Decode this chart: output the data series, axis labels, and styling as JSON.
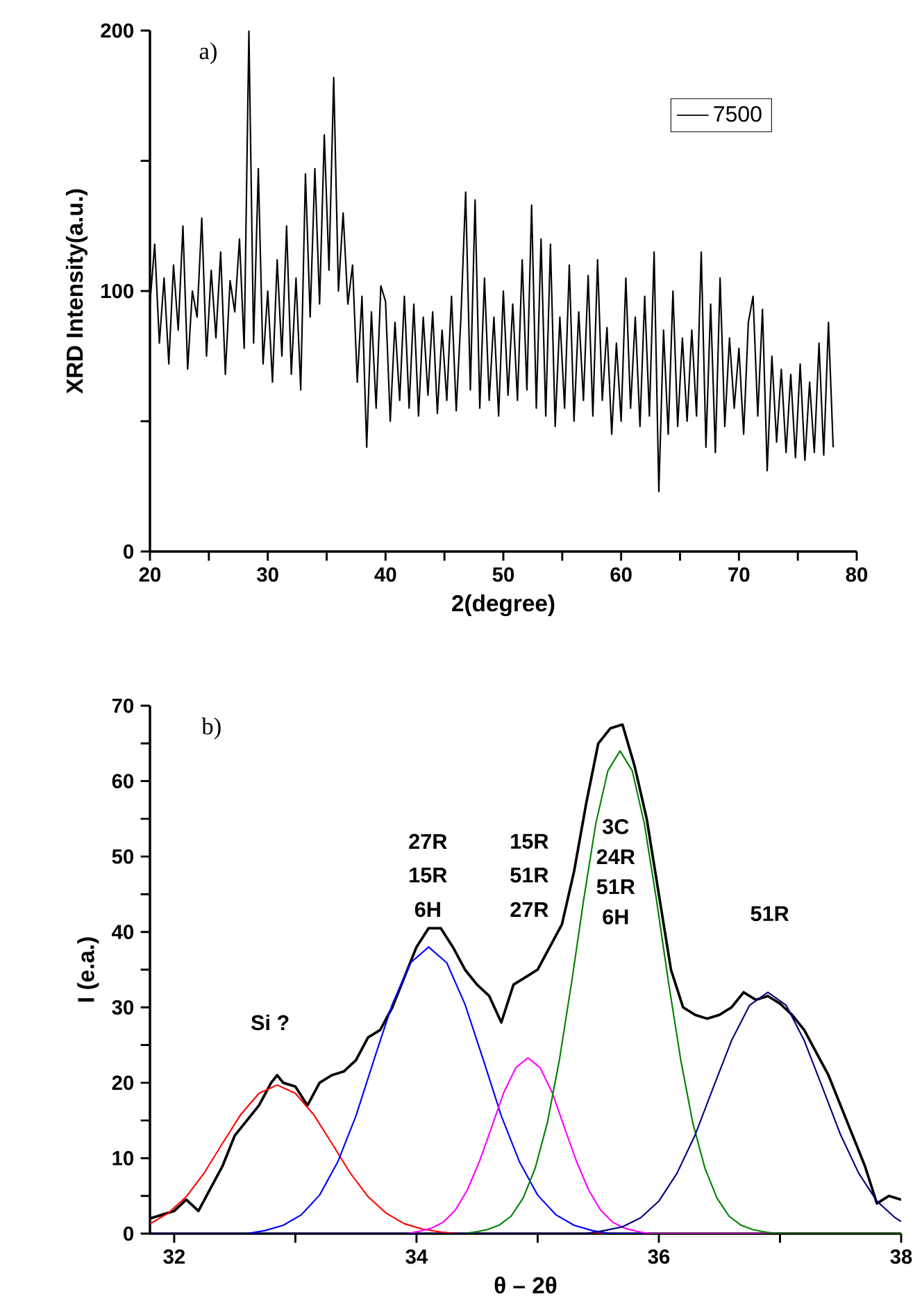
{
  "chart_data": [
    {
      "type": "line",
      "xlabel": "2(degree)",
      "ylabel": "XRD Intensity(a.u.)",
      "legend": "top right",
      "grid": false,
      "marker": "none",
      "line_style": "solid",
      "annotations": [
        "a)"
      ],
      "xlim": [
        20,
        80
      ],
      "ylim": [
        0,
        200
      ],
      "xticks": [
        20,
        {
          "value": 25,
          "label": null
        },
        30,
        {
          "value": 35,
          "label": null
        },
        40,
        {
          "value": 45,
          "label": null
        },
        50,
        {
          "value": 55,
          "label": null
        },
        60,
        {
          "value": 65,
          "label": null
        },
        70,
        {
          "value": 75,
          "label": null
        },
        80
      ],
      "yticks": [
        0,
        {
          "value": 50,
          "label": null
        },
        100,
        {
          "value": 150,
          "label": null
        },
        200
      ],
      "series": [
        {
          "name": "7500",
          "color": "#000000",
          "x": [
            20.0,
            20.4,
            20.8,
            21.2,
            21.6,
            22.0,
            22.4,
            22.8,
            23.2,
            23.6,
            24.0,
            24.4,
            24.8,
            25.2,
            25.6,
            26.0,
            26.4,
            26.8,
            27.2,
            27.6,
            28.0,
            28.4,
            28.8,
            29.2,
            29.6,
            30.0,
            30.4,
            30.8,
            31.2,
            31.6,
            32.0,
            32.4,
            32.8,
            33.2,
            33.6,
            34.0,
            34.4,
            34.8,
            35.2,
            35.6,
            36.0,
            36.4,
            36.8,
            37.2,
            37.6,
            38.0,
            38.4,
            38.8,
            39.2,
            39.6,
            40.0,
            40.4,
            40.8,
            41.2,
            41.6,
            42.0,
            42.4,
            42.8,
            43.2,
            43.6,
            44.0,
            44.4,
            44.8,
            45.2,
            45.6,
            46.0,
            46.4,
            46.8,
            47.2,
            47.6,
            48.0,
            48.4,
            48.8,
            49.2,
            49.6,
            50.0,
            50.4,
            50.8,
            51.2,
            51.6,
            52.0,
            52.4,
            52.8,
            53.2,
            53.6,
            54.0,
            54.4,
            54.8,
            55.2,
            55.6,
            56.0,
            56.4,
            56.8,
            57.2,
            57.6,
            58.0,
            58.4,
            58.8,
            59.2,
            59.6,
            60.0,
            60.4,
            60.8,
            61.2,
            61.6,
            62.0,
            62.4,
            62.8,
            63.2,
            63.6,
            64.0,
            64.4,
            64.8,
            65.2,
            65.6,
            66.0,
            66.4,
            66.8,
            67.2,
            67.6,
            68.0,
            68.4,
            68.8,
            69.2,
            69.6,
            70.0,
            70.4,
            70.8,
            71.2,
            71.6,
            72.0,
            72.4,
            72.8,
            73.2,
            73.6,
            74.0,
            74.4,
            74.8,
            75.2,
            75.6,
            76.0,
            76.4,
            76.8,
            77.2,
            77.6,
            78.0
          ],
          "values": [
            95,
            118,
            80,
            105,
            72,
            110,
            85,
            125,
            70,
            100,
            90,
            128,
            75,
            108,
            82,
            115,
            68,
            104,
            92,
            120,
            78,
            200,
            80,
            147,
            72,
            100,
            65,
            112,
            75,
            125,
            68,
            105,
            62,
            145,
            90,
            147,
            95,
            160,
            108,
            182,
            100,
            130,
            95,
            110,
            65,
            98,
            40,
            92,
            55,
            102,
            96,
            50,
            88,
            58,
            98,
            55,
            95,
            52,
            90,
            60,
            92,
            53,
            85,
            58,
            98,
            54,
            90,
            138,
            62,
            135,
            55,
            105,
            58,
            90,
            52,
            100,
            60,
            95,
            58,
            112,
            62,
            133,
            55,
            120,
            52,
            118,
            48,
            90,
            55,
            110,
            50,
            92,
            58,
            106,
            52,
            112,
            58,
            86,
            45,
            80,
            50,
            105,
            55,
            90,
            48,
            98,
            52,
            115,
            23,
            85,
            45,
            100,
            48,
            82,
            50,
            85,
            52,
            115,
            40,
            95,
            38,
            105,
            48,
            82,
            55,
            78,
            45,
            88,
            98,
            52,
            93,
            31,
            75,
            42,
            70,
            38,
            68,
            36,
            72,
            35,
            65,
            38,
            80,
            37,
            88,
            40
          ]
        }
      ]
    },
    {
      "type": "line",
      "xlabel": "θ – 2θ",
      "ylabel": "I (e.a.)",
      "grid": false,
      "marker": "none",
      "line_style": "solid",
      "annotations": [
        "b)",
        "Si ?",
        "27R",
        "15R",
        "6H",
        "15R",
        "51R",
        "27R",
        "3C",
        "24R",
        "51R",
        "6H",
        "51R"
      ],
      "xlim": [
        31.8,
        38
      ],
      "ylim": [
        0,
        70
      ],
      "xticks": [
        32,
        {
          "value": 33,
          "label": null
        },
        34,
        {
          "value": 35,
          "label": null
        },
        36,
        {
          "value": 37,
          "label": null
        },
        38
      ],
      "yticks": [
        0,
        {
          "value": 5,
          "label": null
        },
        10,
        {
          "value": 15,
          "label": null
        },
        20,
        {
          "value": 25,
          "label": null
        },
        30,
        {
          "value": 35,
          "label": null
        },
        40,
        {
          "value": 45,
          "label": null
        },
        50,
        {
          "value": 55,
          "label": null
        },
        60,
        {
          "value": 65,
          "label": null
        },
        70
      ],
      "series": [
        {
          "color": "#000000",
          "x": [
            31.8,
            31.9,
            32.0,
            32.1,
            32.2,
            32.3,
            32.4,
            32.5,
            32.6,
            32.7,
            32.8,
            32.85,
            32.9,
            33.0,
            33.1,
            33.2,
            33.3,
            33.4,
            33.5,
            33.6,
            33.7,
            33.8,
            33.9,
            34.0,
            34.1,
            34.2,
            34.3,
            34.4,
            34.5,
            34.6,
            34.7,
            34.8,
            34.9,
            35.0,
            35.1,
            35.2,
            35.3,
            35.4,
            35.5,
            35.6,
            35.7,
            35.8,
            35.9,
            36.0,
            36.1,
            36.2,
            36.3,
            36.4,
            36.5,
            36.6,
            36.7,
            36.8,
            36.9,
            37.0,
            37.1,
            37.2,
            37.3,
            37.4,
            37.5,
            37.6,
            37.7,
            37.8,
            37.9,
            38.0
          ],
          "values": [
            2,
            2.5,
            3,
            4.5,
            3,
            6,
            9,
            13,
            15,
            17,
            20,
            21,
            20,
            19.5,
            17,
            20,
            21,
            21.5,
            23,
            26,
            27,
            30,
            34,
            38,
            40.5,
            40.5,
            38,
            35,
            33,
            31.5,
            28,
            33,
            34,
            35,
            38,
            41,
            48,
            57,
            65,
            67,
            67.5,
            62,
            55,
            45,
            35,
            30,
            29,
            28.5,
            29,
            30,
            32,
            31,
            31.5,
            30.5,
            29,
            27,
            24,
            21,
            17,
            13,
            9,
            4,
            5,
            4.5
          ]
        },
        {
          "color": "#ff0000",
          "x": [
            31.8,
            31.95,
            32.1,
            32.25,
            32.4,
            32.55,
            32.7,
            32.85,
            33.0,
            33.15,
            33.3,
            33.45,
            33.6,
            33.75,
            33.9,
            34.05,
            34.2,
            34.35,
            38.0
          ],
          "values": [
            1.3,
            2.7,
            4.9,
            8.1,
            12.0,
            15.8,
            18.6,
            19.7,
            18.6,
            15.8,
            12.0,
            8.1,
            4.9,
            2.7,
            1.3,
            0.6,
            0.2,
            0,
            0
          ]
        },
        {
          "color": "#0000ff",
          "x": [
            31.8,
            32.6,
            32.75,
            32.9,
            33.05,
            33.2,
            33.35,
            33.5,
            33.65,
            33.8,
            33.95,
            34.1,
            34.25,
            34.4,
            34.55,
            34.7,
            34.85,
            35.0,
            35.15,
            35.3,
            35.45,
            35.6,
            38.0
          ],
          "values": [
            0,
            0,
            0.4,
            1.1,
            2.5,
            5.1,
            9.5,
            15.6,
            23.1,
            30.4,
            35.9,
            38,
            35.9,
            30.4,
            23.1,
            15.6,
            9.5,
            5.1,
            2.5,
            1.1,
            0.4,
            0,
            0
          ]
        },
        {
          "color": "#ff00ff",
          "x": [
            31.8,
            33.92,
            34.02,
            34.12,
            34.22,
            34.32,
            34.42,
            34.52,
            34.62,
            34.72,
            34.82,
            34.92,
            35.02,
            35.12,
            35.22,
            35.32,
            35.42,
            35.52,
            35.62,
            35.72,
            35.82,
            35.92,
            38.0
          ],
          "values": [
            0,
            0,
            0.3,
            0.7,
            1.5,
            3.1,
            5.8,
            9.6,
            14.1,
            18.7,
            22.0,
            23.3,
            22.0,
            18.7,
            14.1,
            9.6,
            5.8,
            3.1,
            1.5,
            0.7,
            0.3,
            0,
            0
          ]
        },
        {
          "color": "#008000",
          "x": [
            31.8,
            34.38,
            34.48,
            34.58,
            34.68,
            34.78,
            34.88,
            34.98,
            35.08,
            35.18,
            35.28,
            35.38,
            35.48,
            35.58,
            35.68,
            35.78,
            35.88,
            35.98,
            36.08,
            36.18,
            36.28,
            36.38,
            36.48,
            36.58,
            36.68,
            36.78,
            36.88,
            36.98,
            38.0
          ],
          "values": [
            0,
            0,
            0.2,
            0.5,
            1.1,
            2.3,
            4.7,
            8.7,
            14.7,
            23.1,
            33.3,
            44.3,
            54.4,
            61.4,
            64,
            61.4,
            54.4,
            44.3,
            33.3,
            23.1,
            14.7,
            8.7,
            4.7,
            2.3,
            1.1,
            0.5,
            0.2,
            0,
            0
          ]
        },
        {
          "color": "#000080",
          "x": [
            31.8,
            35.4,
            35.55,
            35.7,
            35.85,
            36.0,
            36.15,
            36.3,
            36.45,
            36.6,
            36.75,
            36.9,
            37.05,
            37.2,
            37.35,
            37.5,
            37.65,
            37.8,
            37.95,
            38.0
          ],
          "values": [
            0,
            0,
            0.4,
            0.9,
            2.1,
            4.3,
            8.0,
            13.1,
            19.4,
            25.6,
            30.3,
            32,
            30.3,
            25.6,
            19.4,
            13.1,
            8.0,
            4.3,
            2.1,
            1.6
          ]
        }
      ]
    }
  ]
}
